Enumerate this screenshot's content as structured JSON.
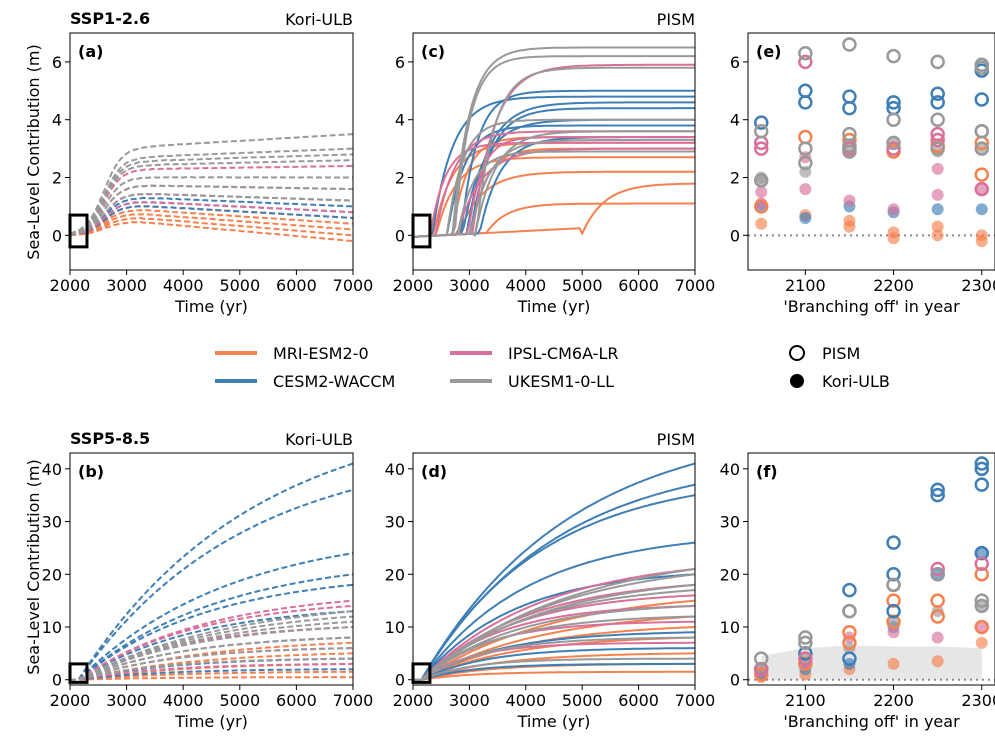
{
  "colors": {
    "MRI-ESM2-0": "#f5814f",
    "CESM2-WACCM": "#3f7fb6",
    "IPSL-CM6A-LR": "#d9709b",
    "UKESM1-0-LL": "#999999"
  },
  "row_titles": {
    "top": "SSP1-2.6",
    "bottom": "SSP5-8.5"
  },
  "ylabel": "Sea-Level Contribution (m)",
  "legend": {
    "models": [
      "MRI-ESM2-0",
      "CESM2-WACCM",
      "IPSL-CM6A-LR",
      "UKESM1-0-LL"
    ],
    "markers": [
      {
        "label": "PISM",
        "style": "open"
      },
      {
        "label": "Kori-ULB",
        "style": "filled"
      }
    ]
  },
  "chart_data": [
    {
      "panel": "(a)",
      "model_name": "Kori-ULB",
      "type": "line",
      "linestyle": "dashed",
      "xlabel": "Time (yr)",
      "xlim": [
        2000,
        7000
      ],
      "xticks": [
        2000,
        3000,
        4000,
        5000,
        6000,
        7000
      ],
      "ylim": [
        -1.2,
        7
      ],
      "yticks": [
        0,
        2,
        4,
        6
      ],
      "series": [
        {
          "model": "MRI-ESM2-0",
          "final": [
            -0.2,
            0.0,
            0.2,
            0.4,
            0.6
          ]
        },
        {
          "model": "CESM2-WACCM",
          "final": [
            0.6,
            0.8,
            1.0
          ]
        },
        {
          "model": "IPSL-CM6A-LR",
          "final": [
            0.8,
            1.2,
            1.6,
            2.4
          ]
        },
        {
          "model": "UKESM1-0-LL",
          "final": [
            1.2,
            1.6,
            2.0,
            2.6,
            2.8,
            3.0,
            3.5
          ]
        }
      ]
    },
    {
      "panel": "(c)",
      "model_name": "PISM",
      "type": "line",
      "linestyle": "solid",
      "xlabel": "Time (yr)",
      "xlim": [
        2000,
        7000
      ],
      "xticks": [
        2000,
        3000,
        4000,
        5000,
        6000,
        7000
      ],
      "ylim": [
        -1.2,
        7
      ],
      "yticks": [
        0,
        2,
        4,
        6
      ],
      "series": [
        {
          "model": "MRI-ESM2-0",
          "final": [
            1.1,
            1.8,
            2.2,
            2.7,
            3.0,
            3.2,
            3.4
          ]
        },
        {
          "model": "CESM2-WACCM",
          "final": [
            3.4,
            3.8,
            4.0,
            4.4,
            4.6,
            4.8,
            5.0
          ]
        },
        {
          "model": "IPSL-CM6A-LR",
          "final": [
            3.0,
            3.2,
            3.4,
            3.6,
            5.9
          ]
        },
        {
          "model": "UKESM1-0-LL",
          "final": [
            2.9,
            3.3,
            3.6,
            4.0,
            5.8,
            6.2,
            6.5
          ]
        }
      ]
    },
    {
      "panel": "(e)",
      "type": "scatter",
      "xlabel": "'Branching off' in year",
      "xlim": [
        2035,
        2315
      ],
      "xticks": [
        2100,
        2200,
        2300
      ],
      "ylim": [
        -1.2,
        7
      ],
      "yticks": [
        0,
        2,
        4,
        6
      ],
      "zero_line": true,
      "points": {
        "PISM": {
          "MRI-ESM2-0": [
            [
              2050,
              1.0
            ],
            [
              2100,
              3.4
            ],
            [
              2150,
              3.3
            ],
            [
              2200,
              2.9
            ],
            [
              2250,
              3.1
            ],
            [
              2300,
              2.1
            ],
            [
              2300,
              3.2
            ]
          ],
          "CESM2-WACCM": [
            [
              2050,
              3.9
            ],
            [
              2100,
              5.0
            ],
            [
              2100,
              4.6
            ],
            [
              2150,
              4.8
            ],
            [
              2150,
              4.4
            ],
            [
              2200,
              4.6
            ],
            [
              2200,
              4.4
            ],
            [
              2250,
              4.9
            ],
            [
              2250,
              4.6
            ],
            [
              2300,
              5.7
            ],
            [
              2300,
              4.7
            ]
          ],
          "IPSL-CM6A-LR": [
            [
              2050,
              3.2
            ],
            [
              2050,
              3.0
            ],
            [
              2100,
              6.0
            ],
            [
              2150,
              3.0
            ],
            [
              2200,
              3.0
            ],
            [
              2250,
              3.5
            ],
            [
              2250,
              3.3
            ],
            [
              2300,
              3.6
            ],
            [
              2300,
              1.6
            ]
          ],
          "UKESM1-0-LL": [
            [
              2050,
              3.6
            ],
            [
              2050,
              1.9
            ],
            [
              2100,
              6.3
            ],
            [
              2100,
              3.0
            ],
            [
              2100,
              2.5
            ],
            [
              2150,
              6.6
            ],
            [
              2150,
              3.5
            ],
            [
              2150,
              3.1
            ],
            [
              2150,
              2.9
            ],
            [
              2200,
              6.2
            ],
            [
              2200,
              4.0
            ],
            [
              2200,
              3.2
            ],
            [
              2250,
              6.0
            ],
            [
              2250,
              4.0
            ],
            [
              2250,
              3.0
            ],
            [
              2300,
              5.9
            ],
            [
              2300,
              5.8
            ],
            [
              2300,
              3.6
            ],
            [
              2300,
              3.0
            ]
          ]
        },
        "Kori-ULB": {
          "MRI-ESM2-0": [
            [
              2050,
              0.4
            ],
            [
              2100,
              0.7
            ],
            [
              2150,
              0.5
            ],
            [
              2150,
              0.3
            ],
            [
              2200,
              0.1
            ],
            [
              2200,
              -0.1
            ],
            [
              2250,
              0.3
            ],
            [
              2250,
              0.0
            ],
            [
              2300,
              0.0
            ],
            [
              2300,
              -0.2
            ]
          ],
          "CESM2-WACCM": [
            [
              2050,
              1.0
            ],
            [
              2100,
              0.6
            ],
            [
              2150,
              1.0
            ],
            [
              2200,
              0.8
            ],
            [
              2250,
              0.9
            ],
            [
              2300,
              0.9
            ]
          ],
          "IPSL-CM6A-LR": [
            [
              2050,
              1.5
            ],
            [
              2050,
              1.1
            ],
            [
              2100,
              2.7
            ],
            [
              2100,
              1.6
            ],
            [
              2150,
              1.2
            ],
            [
              2200,
              0.9
            ],
            [
              2250,
              2.3
            ],
            [
              2250,
              1.4
            ],
            [
              2300,
              1.6
            ]
          ],
          "UKESM1-0-LL": [
            [
              2050,
              2.0
            ],
            [
              2050,
              1.9
            ],
            [
              2100,
              2.2
            ],
            [
              2150,
              2.9
            ],
            [
              2200,
              3.2
            ],
            [
              2250,
              2.9
            ],
            [
              2300,
              3.0
            ]
          ]
        }
      }
    },
    {
      "panel": "(b)",
      "model_name": "Kori-ULB",
      "type": "line",
      "linestyle": "dashed",
      "xlabel": "Time (yr)",
      "xlim": [
        2000,
        7000
      ],
      "xticks": [
        2000,
        3000,
        4000,
        5000,
        6000,
        7000
      ],
      "ylim": [
        -1,
        43
      ],
      "yticks": [
        0,
        10,
        20,
        30,
        40
      ],
      "series": [
        {
          "model": "MRI-ESM2-0",
          "final": [
            0.5,
            1.5,
            3,
            5,
            7
          ]
        },
        {
          "model": "CESM2-WACCM",
          "final": [
            2,
            4,
            8,
            13,
            18,
            20,
            24,
            36,
            41
          ]
        },
        {
          "model": "IPSL-CM6A-LR",
          "final": [
            3,
            6,
            10,
            14,
            15
          ]
        },
        {
          "model": "UKESM1-0-LL",
          "final": [
            4,
            6,
            8,
            10,
            11,
            12,
            13
          ]
        }
      ]
    },
    {
      "panel": "(d)",
      "model_name": "PISM",
      "type": "line",
      "linestyle": "solid",
      "xlabel": "Time (yr)",
      "xlim": [
        2000,
        7000
      ],
      "xticks": [
        2000,
        3000,
        4000,
        5000,
        6000,
        7000
      ],
      "ylim": [
        -1,
        43
      ],
      "yticks": [
        0,
        10,
        20,
        30,
        40
      ],
      "series": [
        {
          "model": "MRI-ESM2-0",
          "final": [
            1.5,
            3,
            5,
            8,
            10,
            12,
            15
          ]
        },
        {
          "model": "CESM2-WACCM",
          "final": [
            3,
            6,
            9,
            20,
            26,
            35,
            37,
            41
          ]
        },
        {
          "model": "IPSL-CM6A-LR",
          "final": [
            7,
            11,
            14,
            16,
            18,
            21
          ]
        },
        {
          "model": "UKESM1-0-LL",
          "final": [
            4,
            8,
            12,
            14,
            17,
            18,
            20,
            21
          ]
        }
      ]
    },
    {
      "panel": "(f)",
      "type": "scatter",
      "xlabel": "'Branching off' in year",
      "xlim": [
        2035,
        2315
      ],
      "xticks": [
        2100,
        2200,
        2300
      ],
      "ylim": [
        -1,
        43
      ],
      "yticks": [
        0,
        10,
        20,
        30,
        40
      ],
      "zero_line": true,
      "shaded_band_upper": [
        [
          2050,
          4.5
        ],
        [
          2100,
          6.0
        ],
        [
          2150,
          6.5
        ],
        [
          2200,
          6.3
        ],
        [
          2250,
          6.3
        ],
        [
          2300,
          6.0
        ]
      ],
      "points": {
        "PISM": {
          "MRI-ESM2-0": [
            [
              2050,
              1
            ],
            [
              2100,
              3
            ],
            [
              2150,
              7
            ],
            [
              2150,
              9
            ],
            [
              2200,
              11
            ],
            [
              2200,
              15
            ],
            [
              2250,
              12
            ],
            [
              2250,
              15
            ],
            [
              2300,
              10
            ],
            [
              2300,
              20
            ]
          ],
          "CESM2-WACCM": [
            [
              2050,
              2
            ],
            [
              2100,
              5
            ],
            [
              2150,
              17
            ],
            [
              2150,
              4
            ],
            [
              2200,
              26
            ],
            [
              2200,
              20
            ],
            [
              2200,
              13
            ],
            [
              2250,
              36
            ],
            [
              2250,
              35
            ],
            [
              2250,
              20
            ],
            [
              2300,
              41
            ],
            [
              2300,
              40
            ],
            [
              2300,
              37
            ],
            [
              2300,
              24
            ]
          ],
          "IPSL-CM6A-LR": [
            [
              2050,
              2
            ],
            [
              2100,
              4
            ],
            [
              2150,
              13
            ],
            [
              2200,
              18
            ],
            [
              2250,
              21
            ],
            [
              2300,
              22
            ]
          ],
          "UKESM1-0-LL": [
            [
              2050,
              4
            ],
            [
              2100,
              8
            ],
            [
              2100,
              7
            ],
            [
              2150,
              13
            ],
            [
              2200,
              18
            ],
            [
              2250,
              20
            ],
            [
              2300,
              15
            ],
            [
              2300,
              14
            ]
          ]
        },
        "Kori-ULB": {
          "MRI-ESM2-0": [
            [
              2050,
              0.5
            ],
            [
              2100,
              1
            ],
            [
              2150,
              2
            ],
            [
              2200,
              3
            ],
            [
              2250,
              3.5
            ],
            [
              2300,
              7
            ]
          ],
          "CESM2-WACCM": [
            [
              2050,
              1
            ],
            [
              2100,
              2
            ],
            [
              2150,
              3
            ],
            [
              2200,
              10
            ],
            [
              2250,
              20
            ],
            [
              2300,
              24
            ]
          ],
          "IPSL-CM6A-LR": [
            [
              2050,
              1.5
            ],
            [
              2100,
              3
            ],
            [
              2150,
              8
            ],
            [
              2200,
              9
            ],
            [
              2250,
              8
            ],
            [
              2300,
              10
            ]
          ],
          "UKESM1-0-LL": [
            [
              2050,
              2
            ],
            [
              2100,
              4
            ],
            [
              2150,
              6
            ],
            [
              2200,
              11
            ],
            [
              2250,
              13
            ],
            [
              2300,
              14
            ]
          ]
        }
      }
    }
  ]
}
